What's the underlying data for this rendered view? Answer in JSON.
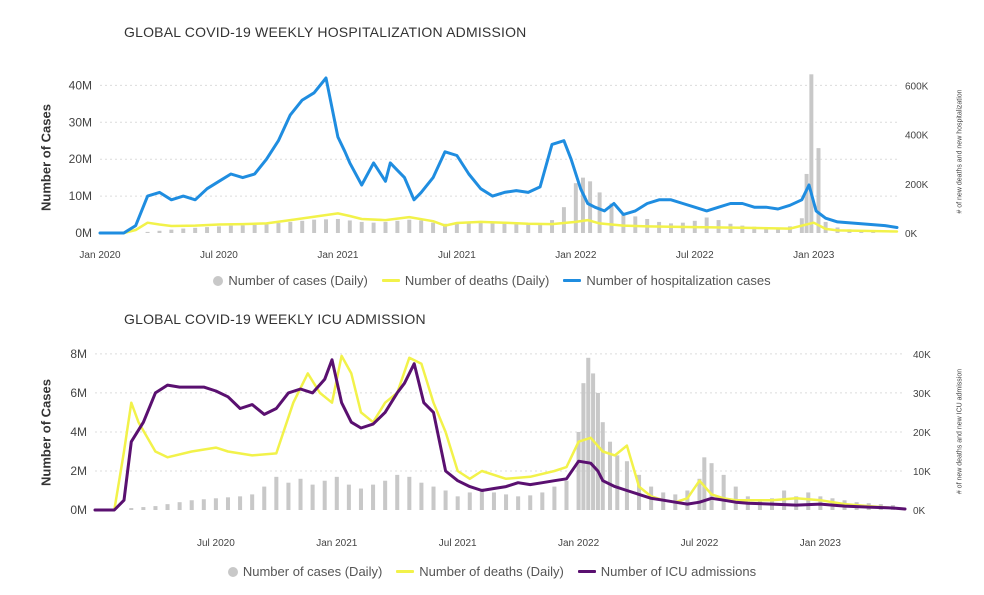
{
  "chart_data": [
    {
      "type": "line",
      "title": "GLOBAL COVID-19 WEEKLY HOSPITALIZATION ADMISSION",
      "ylabel": "Number of Cases",
      "y2label": "# of new deaths and new hospitalization",
      "ylim": [
        0,
        42000000
      ],
      "y2lim": [
        0,
        630000
      ],
      "yticks": [
        "0M",
        "10M",
        "20M",
        "30M",
        "40M"
      ],
      "yticks_values": [
        0,
        10000000,
        20000000,
        30000000,
        40000000
      ],
      "y2ticks": [
        "0K",
        "200K",
        "400K",
        "600K"
      ],
      "y2ticks_values": [
        0,
        200000,
        400000,
        600000
      ],
      "xticks": [
        "Jan 2020",
        "Jul 2020",
        "Jan 2021",
        "Jul 2021",
        "Jan 2022",
        "Jul 2022",
        "Jan 2023"
      ],
      "xticks_values": [
        2020.0,
        2020.5,
        2021.0,
        2021.5,
        2022.0,
        2022.5,
        2023.0
      ],
      "xlim": [
        2020.0,
        2023.35
      ],
      "grid": true,
      "legend_position": "bottom",
      "series": [
        {
          "name": "Number of cases (Daily)",
          "kind": "bar",
          "axis": "left",
          "color": "#c8c8c8",
          "x": [
            2020.2,
            2020.25,
            2020.3,
            2020.35,
            2020.4,
            2020.45,
            2020.5,
            2020.55,
            2020.6,
            2020.65,
            2020.7,
            2020.75,
            2020.8,
            2020.85,
            2020.9,
            2020.95,
            2021.0,
            2021.05,
            2021.1,
            2021.15,
            2021.2,
            2021.25,
            2021.3,
            2021.35,
            2021.4,
            2021.45,
            2021.5,
            2021.55,
            2021.6,
            2021.65,
            2021.7,
            2021.75,
            2021.8,
            2021.85,
            2021.9,
            2021.95,
            2022.0,
            2022.03,
            2022.06,
            2022.1,
            2022.15,
            2022.2,
            2022.25,
            2022.3,
            2022.35,
            2022.4,
            2022.45,
            2022.5,
            2022.55,
            2022.6,
            2022.65,
            2022.7,
            2022.75,
            2022.8,
            2022.85,
            2022.9,
            2022.95,
            2022.97,
            2022.99,
            2023.02,
            2023.05,
            2023.1,
            2023.15,
            2023.2,
            2023.25
          ],
          "values": [
            300000,
            600000,
            900000,
            1200000,
            1400000,
            1600000,
            1800000,
            2000000,
            2100000,
            2200000,
            2400000,
            2700000,
            3000000,
            3300000,
            3600000,
            3700000,
            3800000,
            3400000,
            3000000,
            2800000,
            3000000,
            3300000,
            3600000,
            3400000,
            2800000,
            2500000,
            2700000,
            2900000,
            3100000,
            3000000,
            2700000,
            2500000,
            2300000,
            2500000,
            3500000,
            7000000,
            13500000,
            15000000,
            14000000,
            11000000,
            8000000,
            5500000,
            4500000,
            3800000,
            3000000,
            2600000,
            2800000,
            3300000,
            4200000,
            3500000,
            2500000,
            2000000,
            1700000,
            1500000,
            1400000,
            1800000,
            4000000,
            16000000,
            43000000,
            23000000,
            3000000,
            1500000,
            1000000,
            800000,
            600000
          ]
        },
        {
          "name": "Number of deaths (Daily)",
          "kind": "line",
          "axis": "left",
          "color": "#f2f24a",
          "x": [
            2020.0,
            2020.1,
            2020.15,
            2020.2,
            2020.25,
            2020.3,
            2020.4,
            2020.5,
            2020.6,
            2020.7,
            2020.8,
            2020.9,
            2021.0,
            2021.05,
            2021.1,
            2021.2,
            2021.3,
            2021.4,
            2021.45,
            2021.5,
            2021.6,
            2021.7,
            2021.8,
            2021.9,
            2022.0,
            2022.05,
            2022.1,
            2022.2,
            2022.3,
            2022.5,
            2022.7,
            2022.9,
            2023.0,
            2023.05,
            2023.1,
            2023.35
          ],
          "values": [
            0,
            0,
            800000,
            2800000,
            2300000,
            1900000,
            2000000,
            2300000,
            2400000,
            2600000,
            3500000,
            4400000,
            5300000,
            4600000,
            3800000,
            3500000,
            4300000,
            3200000,
            2000000,
            2700000,
            3000000,
            2800000,
            2500000,
            2400000,
            3000000,
            3500000,
            2600000,
            2000000,
            1800000,
            1600000,
            1400000,
            1200000,
            2800000,
            1100000,
            700000,
            400000
          ]
        },
        {
          "name": "Number of hospitalization cases",
          "kind": "line",
          "axis": "left",
          "color": "#1f8de0",
          "x": [
            2020.0,
            2020.1,
            2020.15,
            2020.2,
            2020.25,
            2020.3,
            2020.35,
            2020.4,
            2020.45,
            2020.5,
            2020.55,
            2020.6,
            2020.65,
            2020.7,
            2020.75,
            2020.8,
            2020.85,
            2020.9,
            2020.95,
            2021.0,
            2021.03,
            2021.05,
            2021.1,
            2021.15,
            2021.2,
            2021.22,
            2021.25,
            2021.28,
            2021.32,
            2021.35,
            2021.4,
            2021.45,
            2021.5,
            2021.55,
            2021.6,
            2021.65,
            2021.7,
            2021.75,
            2021.8,
            2021.85,
            2021.9,
            2021.95,
            2021.98,
            2022.02,
            2022.05,
            2022.08,
            2022.12,
            2022.16,
            2022.2,
            2022.25,
            2022.3,
            2022.35,
            2022.4,
            2022.45,
            2022.5,
            2022.55,
            2022.6,
            2022.65,
            2022.7,
            2022.75,
            2022.8,
            2022.85,
            2022.9,
            2022.95,
            2022.98,
            2023.01,
            2023.05,
            2023.1,
            2023.2,
            2023.3,
            2023.35
          ],
          "values": [
            0,
            0,
            2000000,
            10000000,
            11000000,
            9000000,
            10000000,
            9000000,
            12000000,
            14000000,
            16000000,
            15000000,
            16000000,
            20000000,
            25000000,
            32000000,
            36000000,
            38000000,
            42000000,
            26000000,
            22000000,
            19000000,
            13000000,
            19000000,
            14000000,
            19000000,
            17000000,
            15000000,
            9000000,
            11000000,
            15000000,
            22000000,
            21000000,
            16000000,
            12000000,
            10000000,
            11000000,
            11500000,
            11000000,
            12500000,
            24000000,
            25000000,
            20000000,
            12000000,
            8000000,
            7000000,
            6000000,
            8000000,
            5000000,
            6000000,
            8000000,
            9000000,
            9000000,
            8000000,
            7000000,
            6000000,
            7000000,
            8000000,
            8000000,
            7000000,
            7000000,
            6500000,
            7500000,
            9000000,
            13000000,
            6000000,
            4000000,
            3000000,
            2500000,
            2000000,
            1500000
          ]
        }
      ]
    },
    {
      "type": "line",
      "title": "GLOBAL COVID-19 WEEKLY ICU ADMISSION",
      "ylabel": "Number of Cases",
      "y2label": "# of new deaths and new ICU admission",
      "ylim": [
        0,
        8200000
      ],
      "y2lim": [
        0,
        41000
      ],
      "yticks": [
        "0M",
        "2M",
        "4M",
        "6M",
        "8M"
      ],
      "yticks_values": [
        0,
        2000000,
        4000000,
        6000000,
        8000000
      ],
      "y2ticks": [
        "0K",
        "10K",
        "20K",
        "30K",
        "40K"
      ],
      "y2ticks_values": [
        0,
        10000,
        20000,
        30000,
        40000
      ],
      "xticks": [
        "Jul 2020",
        "Jan 2021",
        "Jul 2021",
        "Jan 2022",
        "Jul 2022",
        "Jan 2023"
      ],
      "xticks_values": [
        2020.5,
        2021.0,
        2021.5,
        2022.0,
        2022.5,
        2023.0
      ],
      "xlim": [
        2020.0,
        2023.35
      ],
      "grid": true,
      "legend_position": "bottom",
      "series": [
        {
          "name": "Number of cases (Daily)",
          "kind": "bar",
          "axis": "left",
          "color": "#c8c8c8",
          "x": [
            2020.15,
            2020.2,
            2020.25,
            2020.3,
            2020.35,
            2020.4,
            2020.45,
            2020.5,
            2020.55,
            2020.6,
            2020.65,
            2020.7,
            2020.75,
            2020.8,
            2020.85,
            2020.9,
            2020.95,
            2021.0,
            2021.05,
            2021.1,
            2021.15,
            2021.2,
            2021.25,
            2021.3,
            2021.35,
            2021.4,
            2021.45,
            2021.5,
            2021.55,
            2021.6,
            2021.65,
            2021.7,
            2021.75,
            2021.8,
            2021.85,
            2021.9,
            2021.95,
            2022.0,
            2022.02,
            2022.04,
            2022.06,
            2022.08,
            2022.1,
            2022.13,
            2022.16,
            2022.2,
            2022.25,
            2022.3,
            2022.35,
            2022.4,
            2022.45,
            2022.5,
            2022.52,
            2022.55,
            2022.6,
            2022.65,
            2022.7,
            2022.75,
            2022.8,
            2022.85,
            2022.9,
            2022.95,
            2023.0,
            2023.05,
            2023.1,
            2023.15,
            2023.2,
            2023.25,
            2023.3
          ],
          "values": [
            100000,
            150000,
            200000,
            300000,
            400000,
            500000,
            550000,
            600000,
            650000,
            700000,
            800000,
            1200000,
            1700000,
            1400000,
            1600000,
            1300000,
            1500000,
            1700000,
            1300000,
            1100000,
            1300000,
            1500000,
            1800000,
            1700000,
            1400000,
            1200000,
            1000000,
            700000,
            900000,
            1100000,
            900000,
            800000,
            700000,
            750000,
            900000,
            1200000,
            1500000,
            4000000,
            6500000,
            7800000,
            7000000,
            6000000,
            4500000,
            3500000,
            2800000,
            2500000,
            1800000,
            1200000,
            900000,
            800000,
            1000000,
            1600000,
            2700000,
            2400000,
            1800000,
            1200000,
            700000,
            500000,
            600000,
            1000000,
            700000,
            900000,
            700000,
            600000,
            500000,
            400000,
            350000,
            300000,
            250000
          ]
        },
        {
          "name": "Number of deaths (Daily)",
          "kind": "line",
          "axis": "left",
          "color": "#f2f24a",
          "x": [
            2020.0,
            2020.08,
            2020.12,
            2020.15,
            2020.18,
            2020.25,
            2020.3,
            2020.4,
            2020.5,
            2020.55,
            2020.65,
            2020.75,
            2020.82,
            2020.88,
            2020.93,
            2020.98,
            2021.02,
            2021.06,
            2021.1,
            2021.15,
            2021.2,
            2021.25,
            2021.3,
            2021.35,
            2021.4,
            2021.45,
            2021.5,
            2021.55,
            2021.6,
            2021.7,
            2021.8,
            2021.9,
            2021.95,
            2022.0,
            2022.05,
            2022.1,
            2022.15,
            2022.2,
            2022.25,
            2022.3,
            2022.35,
            2022.4,
            2022.45,
            2022.5,
            2022.55,
            2022.6,
            2022.65,
            2022.7,
            2022.8,
            2022.9,
            2023.0,
            2023.1,
            2023.2,
            2023.3,
            2023.35
          ],
          "values": [
            0,
            0,
            3000000,
            5500000,
            4500000,
            3000000,
            2700000,
            3000000,
            3200000,
            3000000,
            2800000,
            2900000,
            5500000,
            7000000,
            6000000,
            5500000,
            7900000,
            7000000,
            5000000,
            4500000,
            5500000,
            6000000,
            7800000,
            7500000,
            5500000,
            4000000,
            2000000,
            1600000,
            2000000,
            1600000,
            1700000,
            2000000,
            2200000,
            3500000,
            3700000,
            3000000,
            2800000,
            3300000,
            1200000,
            700000,
            500000,
            400000,
            600000,
            1500000,
            800000,
            600000,
            500000,
            500000,
            500000,
            600000,
            500000,
            300000,
            200000,
            100000,
            50000
          ]
        },
        {
          "name": "Number of ICU admissions",
          "kind": "line",
          "axis": "left",
          "color": "#5a1070",
          "x": [
            2020.0,
            2020.08,
            2020.12,
            2020.15,
            2020.2,
            2020.25,
            2020.3,
            2020.35,
            2020.45,
            2020.5,
            2020.55,
            2020.6,
            2020.65,
            2020.7,
            2020.75,
            2020.8,
            2020.85,
            2020.9,
            2020.95,
            2020.98,
            2021.02,
            2021.06,
            2021.1,
            2021.15,
            2021.2,
            2021.25,
            2021.28,
            2021.32,
            2021.36,
            2021.4,
            2021.45,
            2021.5,
            2021.55,
            2021.6,
            2021.65,
            2021.7,
            2021.75,
            2021.8,
            2021.85,
            2021.9,
            2021.95,
            2022.0,
            2022.05,
            2022.08,
            2022.1,
            2022.15,
            2022.2,
            2022.25,
            2022.3,
            2022.35,
            2022.4,
            2022.45,
            2022.5,
            2022.55,
            2022.6,
            2022.65,
            2022.7,
            2022.8,
            2022.9,
            2023.0,
            2023.1,
            2023.2,
            2023.3,
            2023.35
          ],
          "values": [
            0,
            0,
            500000,
            3500000,
            4500000,
            6000000,
            6400000,
            6300000,
            6300000,
            6100000,
            5800000,
            5200000,
            5400000,
            4900000,
            5200000,
            6000000,
            6200000,
            6000000,
            6700000,
            7700000,
            5500000,
            4500000,
            4200000,
            4400000,
            5000000,
            6000000,
            6500000,
            7500000,
            5500000,
            5000000,
            2000000,
            1500000,
            1200000,
            1000000,
            1100000,
            1200000,
            1400000,
            1300000,
            1400000,
            1500000,
            1600000,
            2500000,
            2400000,
            2000000,
            1500000,
            1200000,
            1000000,
            800000,
            600000,
            500000,
            400000,
            300000,
            400000,
            600000,
            500000,
            400000,
            350000,
            300000,
            250000,
            300000,
            200000,
            150000,
            100000,
            50000
          ]
        }
      ]
    }
  ]
}
